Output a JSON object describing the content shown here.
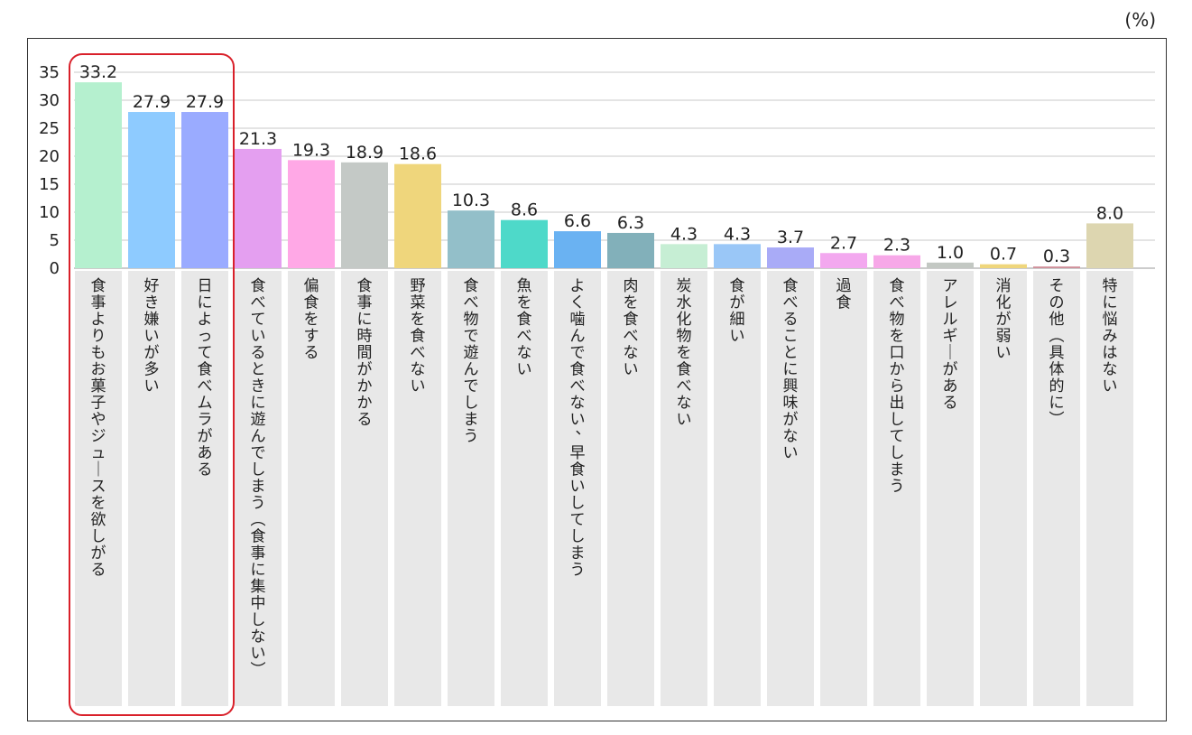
{
  "unit_label": "(%)",
  "chart_data": {
    "type": "bar",
    "title": "",
    "xlabel": "",
    "ylabel": "",
    "ylim": [
      0,
      35
    ],
    "yticks": [
      0,
      5,
      10,
      15,
      20,
      25,
      30,
      35
    ],
    "grid": true,
    "categories": [
      "食事よりもお菓子やジュースを欲しがる",
      "好き嫌いが多い",
      "日によって食べムラがある",
      "食べているときに遊んでしまう（食事に集中しない）",
      "偏食をする",
      "食事に時間がかかる",
      "野菜を食べない",
      "食べ物で遊んでしまう",
      "魚を食べない",
      "よく噛んで食べない、早食いしてしまう",
      "肉を食べない",
      "炭水化物を食べない",
      "食が細い",
      "食べることに興味がない",
      "過食",
      "食べ物を口から出してしまう",
      "アレルギーがある",
      "消化が弱い",
      "その他（具体的に）",
      "特に悩みはない"
    ],
    "values": [
      33.2,
      27.9,
      27.9,
      21.3,
      19.3,
      18.9,
      18.6,
      10.3,
      8.6,
      6.6,
      6.3,
      4.3,
      4.3,
      3.7,
      2.7,
      2.3,
      1.0,
      0.7,
      0.3,
      8.0
    ],
    "value_labels": [
      "33.2",
      "27.9",
      "27.9",
      "21.3",
      "19.3",
      "18.9",
      "18.6",
      "10.3",
      "8.6",
      "6.6",
      "6.3",
      "4.3",
      "4.3",
      "3.7",
      "2.7",
      "2.3",
      "1.0",
      "0.7",
      "0.3",
      "8.0"
    ],
    "colors": [
      "#b5f0cf",
      "#8ecbff",
      "#9aabff",
      "#e49ff0",
      "#ffa8e6",
      "#c4c9c6",
      "#efd67c",
      "#93bfc9",
      "#4ed9c9",
      "#6ab2f2",
      "#82b0ba",
      "#c6eed4",
      "#9ac7f7",
      "#a9abf7",
      "#f3a8ef",
      "#f7a8e8",
      "#c3c8c3",
      "#efd67c",
      "#cf8f9a",
      "#ddd6b0"
    ],
    "label_bg_color": "#e8e8e8",
    "highlight_color": "#d9202a",
    "highlight_range": [
      0,
      2
    ]
  }
}
